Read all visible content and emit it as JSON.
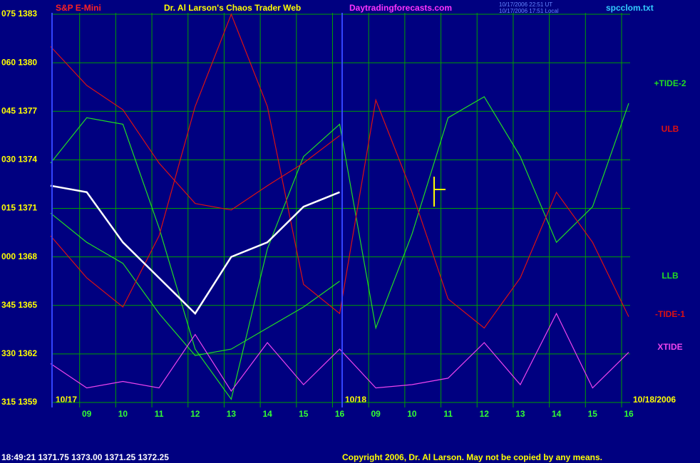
{
  "chart_data": {
    "type": "line",
    "title": "Dr. Al Larson's Chaos Trader Web",
    "instrument": "S&P E-Mini",
    "site": "Daytradingforecasts.com",
    "timestamp_ut": "10/17/2006 22:51 UT",
    "timestamp_local": "10/17/2006 17:51 Local",
    "file": "spcclom.txt",
    "day_labels": [
      "10/17",
      "10/18",
      "10/18/2006"
    ],
    "status": "18:49:21  1371.75 1373.00 1371.25 1372.25",
    "copyright": "Copyright 2006, Dr. Al Larson. May not be copied by any means.",
    "x": [
      0,
      1,
      2,
      3,
      4,
      5,
      6,
      7,
      8,
      9,
      10,
      11,
      12,
      13,
      14,
      15,
      16
    ],
    "xlim": [
      0,
      16
    ],
    "xticks": [
      {
        "value": 1,
        "label": "09"
      },
      {
        "value": 2,
        "label": "10"
      },
      {
        "value": 3,
        "label": "11"
      },
      {
        "value": 4,
        "label": "12"
      },
      {
        "value": 5,
        "label": "13"
      },
      {
        "value": 6,
        "label": "14"
      },
      {
        "value": 7,
        "label": "15"
      },
      {
        "value": 8,
        "label": "16"
      },
      {
        "value": 9,
        "label": "09"
      },
      {
        "value": 10,
        "label": "10"
      },
      {
        "value": 11,
        "label": "11"
      },
      {
        "value": 12,
        "label": "12"
      },
      {
        "value": 13,
        "label": "13"
      },
      {
        "value": 14,
        "label": "14"
      },
      {
        "value": 15,
        "label": "15"
      },
      {
        "value": 16,
        "label": "16"
      }
    ],
    "ylim": [
      1359,
      1383
    ],
    "yticks": [
      {
        "value": 1383,
        "label": "075 1383"
      },
      {
        "value": 1380,
        "label": "060 1380"
      },
      {
        "value": 1377,
        "label": "045 1377"
      },
      {
        "value": 1374,
        "label": "030 1374"
      },
      {
        "value": 1371,
        "label": "015 1371"
      },
      {
        "value": 1368,
        "label": "000 1368"
      },
      {
        "value": 1365,
        "label": "345 1365"
      },
      {
        "value": 1362,
        "label": "330 1362"
      },
      {
        "value": 1359,
        "label": "315 1359"
      }
    ],
    "grid": true,
    "series": [
      {
        "name": "+TIDE-2",
        "color": "#22dd22",
        "values": [
          1373.8,
          1376.6,
          1376.2,
          1369.8,
          1362.3,
          1359.2,
          1368.5,
          1374.2,
          1376.2,
          1363.6,
          1369.4,
          1376.6,
          1377.9,
          1374.2,
          1368.9,
          1371.1,
          1377.5
        ]
      },
      {
        "name": "ULB",
        "color": "#dd1111",
        "values": [
          1381.0,
          1378.6,
          1377.1,
          1373.8,
          1371.3,
          1370.9,
          1372.4,
          1373.8,
          1375.5,
          null,
          null,
          null,
          null,
          null,
          null,
          null,
          null
        ]
      },
      {
        "name": "LLB",
        "color": "#22dd22",
        "values": [
          1370.7,
          1368.9,
          1367.6,
          1364.5,
          1361.9,
          1362.3,
          1363.6,
          1364.9,
          1366.5,
          null,
          null,
          null,
          null,
          null,
          null,
          null,
          null
        ]
      },
      {
        "name": "-TIDE-1",
        "color": "#dd1111",
        "values": [
          1369.3,
          1366.7,
          1364.9,
          1369.3,
          1377.3,
          1383.0,
          1377.3,
          1366.3,
          1364.5,
          1377.7,
          1372.0,
          1365.4,
          1363.6,
          1366.7,
          1372.0,
          1368.9,
          1364.3
        ]
      },
      {
        "name": "XTIDE",
        "color": "#ee44ee",
        "values": [
          1361.4,
          1359.9,
          1360.3,
          1359.9,
          1363.2,
          1359.7,
          1362.7,
          1360.1,
          1362.3,
          1359.9,
          1360.1,
          1360.5,
          1362.7,
          1360.1,
          1364.5,
          1359.9,
          1362.1
        ]
      },
      {
        "color": "#ffffff",
        "values": [
          1372.4,
          1372.0,
          1368.9,
          1366.7,
          1364.5,
          1368.0,
          1368.9,
          1371.1,
          1372.0,
          null,
          null,
          null,
          null,
          null,
          null,
          null,
          null
        ]
      }
    ]
  }
}
